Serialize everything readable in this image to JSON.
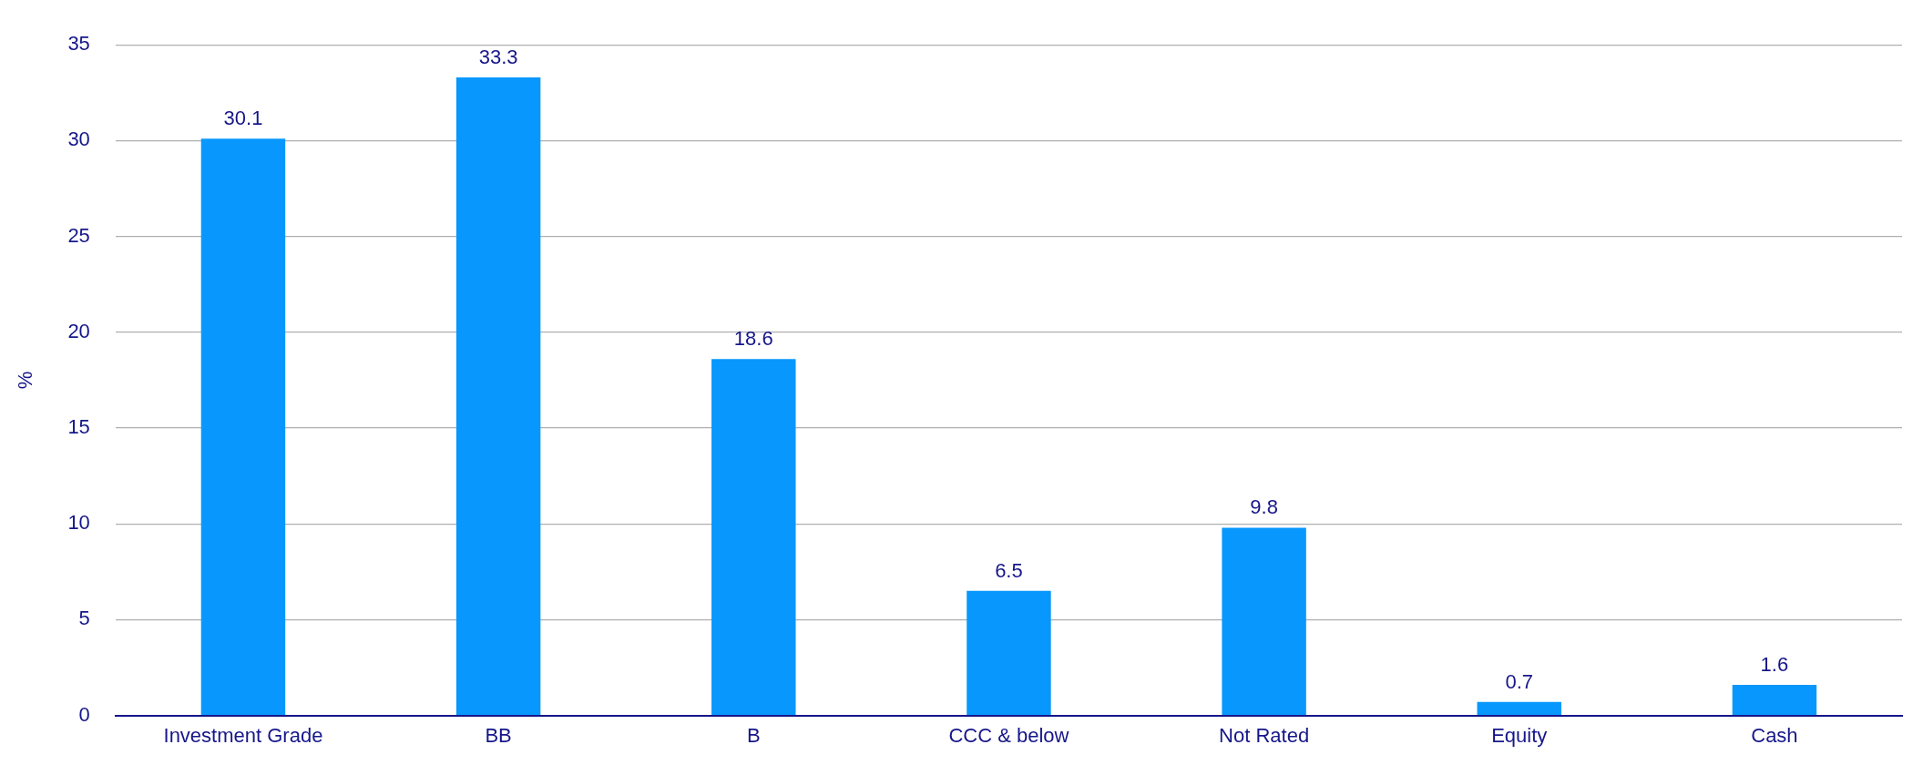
{
  "chart_data": {
    "type": "bar",
    "ylabel": "%",
    "categories": [
      "Investment Grade",
      "BB",
      "B",
      "CCC & below",
      "Not Rated",
      "Equity",
      "Cash"
    ],
    "values": [
      30.1,
      33.3,
      18.6,
      6.5,
      9.8,
      0.7,
      1.6
    ],
    "color": "#0898fd",
    "ylim": [
      0,
      35
    ],
    "yticks": [
      0,
      5,
      10,
      15,
      20,
      25,
      30,
      35
    ],
    "grid": "y",
    "data_labels": true,
    "legend": false
  }
}
